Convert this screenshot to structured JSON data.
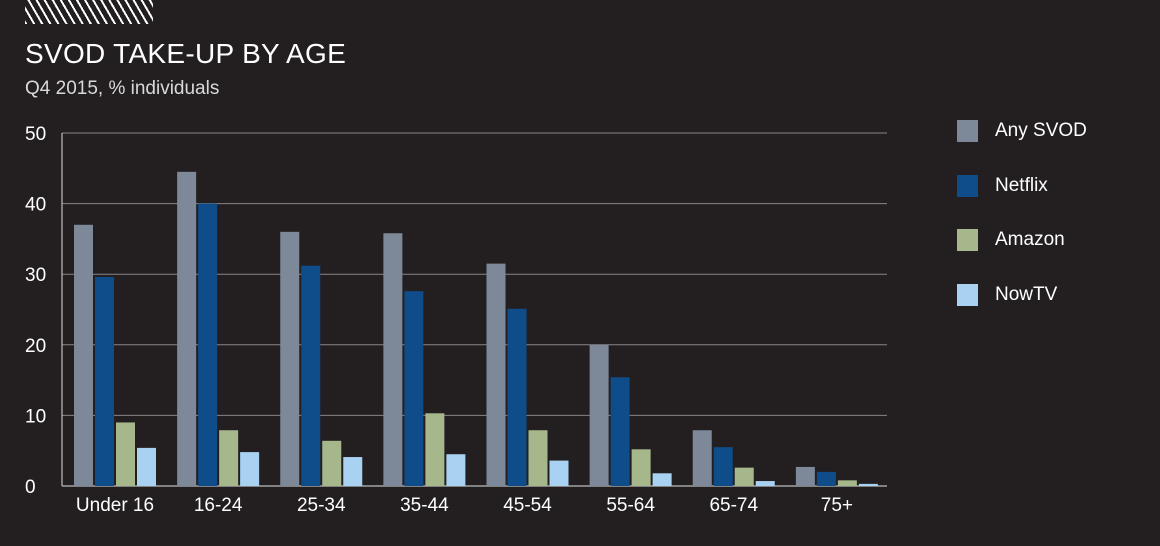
{
  "header": {
    "title": "SVOD TAKE-UP BY AGE",
    "subtitle": "Q4 2015, % individuals"
  },
  "chart_data": {
    "type": "bar",
    "title": "SVOD TAKE-UP BY AGE",
    "subtitle": "Q4 2015, % individuals",
    "xlabel": "",
    "ylabel": "",
    "ylim": [
      0,
      50
    ],
    "yticks": [
      0,
      10,
      20,
      30,
      40,
      50
    ],
    "grid": true,
    "legend_position": "right",
    "categories": [
      "Under 16",
      "16-24",
      "25-34",
      "35-44",
      "45-54",
      "55-64",
      "65-74",
      "75+"
    ],
    "series": [
      {
        "name": "Any SVOD",
        "color": "#7d8898",
        "values": [
          37,
          44.5,
          36,
          35.8,
          31.5,
          20,
          7.9,
          2.7
        ]
      },
      {
        "name": "Netflix",
        "color": "#0f4c8a",
        "values": [
          29.6,
          40,
          31.2,
          27.6,
          25.1,
          15.4,
          5.5,
          2.0
        ]
      },
      {
        "name": "Amazon",
        "color": "#a6b78b",
        "values": [
          9,
          7.9,
          6.4,
          10.3,
          7.9,
          5.2,
          2.6,
          0.8
        ]
      },
      {
        "name": "NowTV",
        "color": "#a9d2f2",
        "values": [
          5.4,
          4.8,
          4.1,
          4.5,
          3.6,
          1.8,
          0.7,
          0.3
        ]
      }
    ]
  }
}
